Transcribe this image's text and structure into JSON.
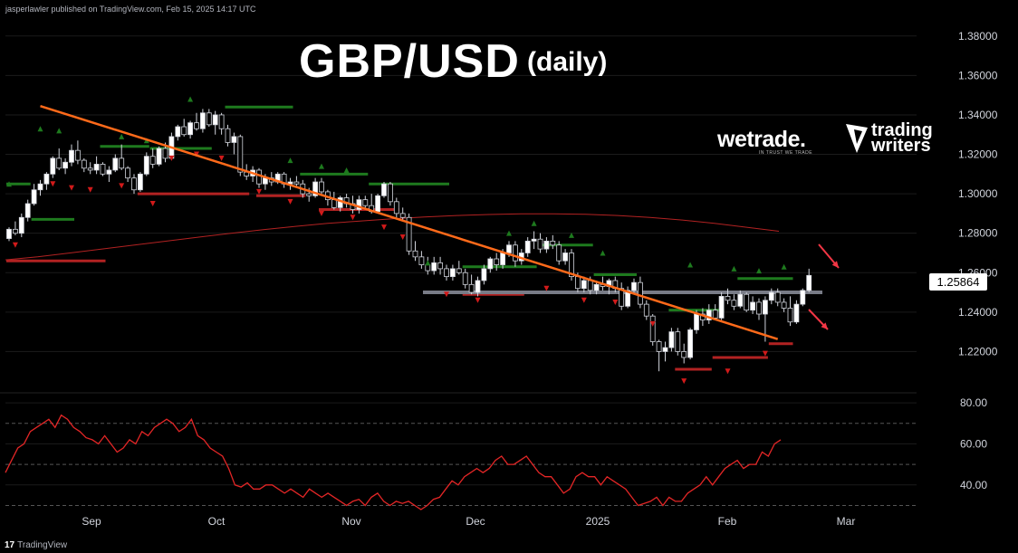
{
  "header": {
    "published": "jasperlawler published on TradingView.com, Feb 15, 2025 14:17 UTC"
  },
  "title": "GBP/USD",
  "subtitle": "(daily)",
  "logos": {
    "wetrade": "wetrade.",
    "wetrade_tagline": "IN TRUST WE TRADE",
    "writers_line1": "trading",
    "writers_line2": "writers"
  },
  "footer": {
    "brand": "TradingView"
  },
  "colors": {
    "bull": "#ffffff",
    "bear": "#000000",
    "trendline": "#ff6a1a",
    "ma": "#b22222",
    "rsi": "#e32626",
    "support": "#787b86",
    "arrow": "#f23645",
    "up_marker": "#1e7a1e",
    "down_marker": "#d11a1a"
  },
  "chart_data": [
    {
      "type": "candlestick",
      "title": "GBP/USD (daily)",
      "ylim": [
        1.2,
        1.39
      ],
      "y_ticks": [
        "1.38000",
        "1.36000",
        "1.34000",
        "1.32000",
        "1.30000",
        "1.28000",
        "1.26000",
        "1.24000",
        "1.22000"
      ],
      "x_ticks": [
        "Sep",
        "Oct",
        "Nov",
        "Dec",
        "2025",
        "Feb",
        "Mar"
      ],
      "last_price_label": "1.25864",
      "candles": [
        [
          1.2773,
          1.283,
          1.276,
          1.282
        ],
        [
          1.282,
          1.286,
          1.279,
          1.28
        ],
        [
          1.28,
          1.29,
          1.278,
          1.288
        ],
        [
          1.288,
          1.297,
          1.286,
          1.295
        ],
        [
          1.295,
          1.305,
          1.294,
          1.302
        ],
        [
          1.302,
          1.307,
          1.299,
          1.305
        ],
        [
          1.305,
          1.311,
          1.302,
          1.31
        ],
        [
          1.31,
          1.319,
          1.308,
          1.318
        ],
        [
          1.318,
          1.323,
          1.312,
          1.313
        ],
        [
          1.313,
          1.318,
          1.31,
          1.316
        ],
        [
          1.316,
          1.325,
          1.314,
          1.322
        ],
        [
          1.322,
          1.327,
          1.315,
          1.317
        ],
        [
          1.317,
          1.318,
          1.311,
          1.313
        ],
        [
          1.313,
          1.316,
          1.31,
          1.312
        ],
        [
          1.312,
          1.319,
          1.31,
          1.315
        ],
        [
          1.315,
          1.316,
          1.309,
          1.31
        ],
        [
          1.31,
          1.314,
          1.306,
          1.312
        ],
        [
          1.312,
          1.32,
          1.311,
          1.318
        ],
        [
          1.318,
          1.325,
          1.312,
          1.313
        ],
        [
          1.313,
          1.314,
          1.306,
          1.308
        ],
        [
          1.308,
          1.31,
          1.3,
          1.302
        ],
        [
          1.302,
          1.311,
          1.301,
          1.31
        ],
        [
          1.31,
          1.321,
          1.309,
          1.319
        ],
        [
          1.319,
          1.323,
          1.313,
          1.315
        ],
        [
          1.315,
          1.324,
          1.314,
          1.323
        ],
        [
          1.323,
          1.326,
          1.316,
          1.318
        ],
        [
          1.318,
          1.331,
          1.317,
          1.329
        ],
        [
          1.329,
          1.335,
          1.327,
          1.334
        ],
        [
          1.334,
          1.338,
          1.329,
          1.33
        ],
        [
          1.33,
          1.337,
          1.328,
          1.336
        ],
        [
          1.336,
          1.341,
          1.332,
          1.333
        ],
        [
          1.333,
          1.343,
          1.331,
          1.341
        ],
        [
          1.341,
          1.343,
          1.334,
          1.335
        ],
        [
          1.335,
          1.342,
          1.33,
          1.34
        ],
        [
          1.34,
          1.341,
          1.33,
          1.333
        ],
        [
          1.333,
          1.335,
          1.324,
          1.326
        ],
        [
          1.326,
          1.331,
          1.32,
          1.329
        ],
        [
          1.329,
          1.33,
          1.309,
          1.311
        ],
        [
          1.311,
          1.315,
          1.307,
          1.309
        ],
        [
          1.309,
          1.314,
          1.306,
          1.312
        ],
        [
          1.312,
          1.313,
          1.303,
          1.305
        ],
        [
          1.305,
          1.31,
          1.302,
          1.308
        ],
        [
          1.308,
          1.311,
          1.304,
          1.306
        ],
        [
          1.306,
          1.311,
          1.305,
          1.31
        ],
        [
          1.31,
          1.311,
          1.303,
          1.305
        ],
        [
          1.305,
          1.308,
          1.302,
          1.306
        ],
        [
          1.306,
          1.309,
          1.304,
          1.305
        ],
        [
          1.305,
          1.307,
          1.298,
          1.3
        ],
        [
          1.3,
          1.303,
          1.296,
          1.299
        ],
        [
          1.299,
          1.308,
          1.298,
          1.306
        ],
        [
          1.306,
          1.308,
          1.3,
          1.301
        ],
        [
          1.301,
          1.302,
          1.294,
          1.297
        ],
        [
          1.297,
          1.301,
          1.292,
          1.293
        ],
        [
          1.293,
          1.299,
          1.291,
          1.298
        ],
        [
          1.298,
          1.3,
          1.293,
          1.295
        ],
        [
          1.295,
          1.299,
          1.29,
          1.292
        ],
        [
          1.292,
          1.299,
          1.29,
          1.297
        ],
        [
          1.297,
          1.299,
          1.292,
          1.294
        ],
        [
          1.294,
          1.3,
          1.29,
          1.291
        ],
        [
          1.291,
          1.3,
          1.29,
          1.299
        ],
        [
          1.299,
          1.306,
          1.298,
          1.305
        ],
        [
          1.305,
          1.306,
          1.294,
          1.296
        ],
        [
          1.296,
          1.298,
          1.288,
          1.29
        ],
        [
          1.29,
          1.293,
          1.286,
          1.288
        ],
        [
          1.288,
          1.29,
          1.269,
          1.271
        ],
        [
          1.271,
          1.276,
          1.266,
          1.268
        ],
        [
          1.268,
          1.271,
          1.262,
          1.264
        ],
        [
          1.264,
          1.268,
          1.259,
          1.261
        ],
        [
          1.261,
          1.268,
          1.259,
          1.265
        ],
        [
          1.265,
          1.268,
          1.259,
          1.262
        ],
        [
          1.262,
          1.264,
          1.256,
          1.258
        ],
        [
          1.258,
          1.264,
          1.256,
          1.262
        ],
        [
          1.262,
          1.266,
          1.259,
          1.26
        ],
        [
          1.26,
          1.262,
          1.252,
          1.254
        ],
        [
          1.254,
          1.259,
          1.249,
          1.25
        ],
        [
          1.25,
          1.258,
          1.248,
          1.256
        ],
        [
          1.256,
          1.264,
          1.254,
          1.262
        ],
        [
          1.262,
          1.268,
          1.26,
          1.267
        ],
        [
          1.267,
          1.27,
          1.261,
          1.264
        ],
        [
          1.264,
          1.272,
          1.262,
          1.27
        ],
        [
          1.27,
          1.276,
          1.268,
          1.274
        ],
        [
          1.274,
          1.276,
          1.263,
          1.266
        ],
        [
          1.266,
          1.272,
          1.264,
          1.27
        ],
        [
          1.27,
          1.278,
          1.268,
          1.276
        ],
        [
          1.276,
          1.281,
          1.272,
          1.277
        ],
        [
          1.277,
          1.28,
          1.27,
          1.272
        ],
        [
          1.272,
          1.278,
          1.27,
          1.276
        ],
        [
          1.276,
          1.279,
          1.272,
          1.274
        ],
        [
          1.274,
          1.276,
          1.264,
          1.266
        ],
        [
          1.266,
          1.272,
          1.264,
          1.27
        ],
        [
          1.27,
          1.272,
          1.256,
          1.258
        ],
        [
          1.258,
          1.26,
          1.25,
          1.252
        ],
        [
          1.252,
          1.258,
          1.25,
          1.256
        ],
        [
          1.256,
          1.258,
          1.249,
          1.251
        ],
        [
          1.251,
          1.256,
          1.249,
          1.254
        ],
        [
          1.254,
          1.258,
          1.251,
          1.253
        ],
        [
          1.253,
          1.257,
          1.249,
          1.256
        ],
        [
          1.256,
          1.258,
          1.25,
          1.252
        ],
        [
          1.252,
          1.255,
          1.241,
          1.243
        ],
        [
          1.243,
          1.253,
          1.242,
          1.251
        ],
        [
          1.251,
          1.257,
          1.249,
          1.255
        ],
        [
          1.255,
          1.258,
          1.242,
          1.244
        ],
        [
          1.244,
          1.246,
          1.236,
          1.238
        ],
        [
          1.238,
          1.239,
          1.223,
          1.225
        ],
        [
          1.225,
          1.226,
          1.21,
          1.22
        ],
        [
          1.22,
          1.225,
          1.215,
          1.222
        ],
        [
          1.222,
          1.232,
          1.22,
          1.23
        ],
        [
          1.23,
          1.232,
          1.218,
          1.22
        ],
        [
          1.22,
          1.224,
          1.214,
          1.217
        ],
        [
          1.217,
          1.232,
          1.216,
          1.231
        ],
        [
          1.231,
          1.241,
          1.229,
          1.239
        ],
        [
          1.239,
          1.242,
          1.233,
          1.236
        ],
        [
          1.236,
          1.244,
          1.234,
          1.241
        ],
        [
          1.241,
          1.244,
          1.236,
          1.237
        ],
        [
          1.237,
          1.25,
          1.236,
          1.248
        ],
        [
          1.248,
          1.252,
          1.244,
          1.246
        ],
        [
          1.246,
          1.249,
          1.241,
          1.243
        ],
        [
          1.243,
          1.251,
          1.242,
          1.249
        ],
        [
          1.249,
          1.25,
          1.24,
          1.241
        ],
        [
          1.241,
          1.248,
          1.239,
          1.245
        ],
        [
          1.245,
          1.247,
          1.236,
          1.239
        ],
        [
          1.239,
          1.248,
          1.225,
          1.246
        ],
        [
          1.246,
          1.252,
          1.244,
          1.25
        ],
        [
          1.25,
          1.252,
          1.243,
          1.245
        ],
        [
          1.245,
          1.247,
          1.24,
          1.242
        ],
        [
          1.242,
          1.248,
          1.233,
          1.235
        ],
        [
          1.235,
          1.246,
          1.234,
          1.244
        ],
        [
          1.244,
          1.252,
          1.243,
          1.251
        ],
        [
          1.251,
          1.262,
          1.25,
          1.2586
        ]
      ],
      "moving_average": {
        "color": "#b22222",
        "values": [
          1.2665,
          1.268,
          1.27,
          1.272,
          1.274,
          1.276,
          1.278,
          1.28,
          1.2818,
          1.2835,
          1.285,
          1.2862,
          1.2873,
          1.2882,
          1.289,
          1.2895,
          1.2898,
          1.2898,
          1.2896,
          1.289,
          1.288,
          1.2867,
          1.285,
          1.283,
          1.281
        ]
      },
      "support_level": 1.25,
      "trendline": {
        "from": [
          5,
          1.3445
        ],
        "to": [
          123,
          1.2263
        ]
      },
      "up_markers": [
        [
          0,
          1.305
        ],
        [
          5,
          1.333
        ],
        [
          8,
          1.332
        ],
        [
          18,
          1.329
        ],
        [
          22,
          1.327
        ],
        [
          29,
          1.348
        ],
        [
          45,
          1.317
        ],
        [
          50,
          1.314
        ],
        [
          54,
          1.312
        ],
        [
          67,
          1.265
        ],
        [
          80,
          1.28
        ],
        [
          84,
          1.285
        ],
        [
          90,
          1.279
        ],
        [
          95,
          1.27
        ],
        [
          109,
          1.264
        ],
        [
          116,
          1.262
        ],
        [
          120,
          1.261
        ],
        [
          124,
          1.263
        ]
      ],
      "down_markers": [
        [
          1,
          1.274
        ],
        [
          7,
          1.305
        ],
        [
          10,
          1.303
        ],
        [
          13,
          1.302
        ],
        [
          18,
          1.304
        ],
        [
          23,
          1.295
        ],
        [
          26,
          1.318
        ],
        [
          30,
          1.32
        ],
        [
          34,
          1.318
        ],
        [
          40,
          1.301
        ],
        [
          45,
          1.296
        ],
        [
          50,
          1.29
        ],
        [
          55,
          1.288
        ],
        [
          60,
          1.283
        ],
        [
          63,
          1.278
        ],
        [
          70,
          1.249
        ],
        [
          75,
          1.246
        ],
        [
          86,
          1.252
        ],
        [
          92,
          1.246
        ],
        [
          97,
          1.245
        ],
        [
          103,
          1.234
        ],
        [
          108,
          1.205
        ],
        [
          115,
          1.21
        ],
        [
          121,
          1.219
        ]
      ],
      "resistance_dashes": [
        {
          "from": 0,
          "to": 3,
          "level": 1.305,
          "color": "#1e7a1e"
        },
        {
          "from": 4,
          "to": 10,
          "level": 1.287,
          "color": "#1e7a1e"
        },
        {
          "from": 15,
          "to": 22,
          "level": 1.324,
          "color": "#1e7a1e"
        },
        {
          "from": 23,
          "to": 32,
          "level": 1.323,
          "color": "#1e7a1e"
        },
        {
          "from": 35,
          "to": 45,
          "level": 1.344,
          "color": "#1e7a1e"
        },
        {
          "from": 47,
          "to": 57,
          "level": 1.31,
          "color": "#1e7a1e"
        },
        {
          "from": 58,
          "to": 70,
          "level": 1.305,
          "color": "#1e7a1e"
        },
        {
          "from": 73,
          "to": 84,
          "level": 1.263,
          "color": "#1e7a1e"
        },
        {
          "from": 85,
          "to": 93,
          "level": 1.274,
          "color": "#1e7a1e"
        },
        {
          "from": 94,
          "to": 100,
          "level": 1.259,
          "color": "#1e7a1e"
        },
        {
          "from": 106,
          "to": 114,
          "level": 1.241,
          "color": "#1e7a1e"
        },
        {
          "from": 117,
          "to": 125,
          "level": 1.257,
          "color": "#1e7a1e"
        },
        {
          "from": 0,
          "to": 15,
          "level": 1.266,
          "color": "#b22222"
        },
        {
          "from": 21,
          "to": 38,
          "level": 1.3,
          "color": "#b22222"
        },
        {
          "from": 40,
          "to": 47,
          "level": 1.299,
          "color": "#b22222"
        },
        {
          "from": 50,
          "to": 62,
          "level": 1.292,
          "color": "#b22222"
        },
        {
          "from": 73,
          "to": 82,
          "level": 1.249,
          "color": "#b22222"
        },
        {
          "from": 86,
          "to": 100,
          "level": 1.25,
          "color": "#b22222"
        },
        {
          "from": 107,
          "to": 112,
          "level": 1.211,
          "color": "#b22222"
        },
        {
          "from": 113,
          "to": 121,
          "level": 1.217,
          "color": "#b22222"
        },
        {
          "from": 122,
          "to": 125,
          "level": 1.224,
          "color": "#b22222"
        }
      ]
    },
    {
      "type": "line",
      "title": "RSI",
      "ylim": [
        28,
        84
      ],
      "y_ticks": [
        "80.00",
        "60.00",
        "40.00"
      ],
      "levels": [
        70,
        30,
        50
      ],
      "values": [
        46,
        52,
        58,
        60,
        66,
        68,
        70,
        72,
        68,
        74,
        72,
        68,
        66,
        63,
        62,
        60,
        64,
        60,
        56,
        58,
        62,
        60,
        66,
        64,
        68,
        70,
        72,
        70,
        66,
        68,
        72,
        64,
        62,
        58,
        56,
        54,
        48,
        40,
        39,
        41,
        38,
        38,
        40,
        40,
        38,
        36,
        38,
        36,
        34,
        38,
        36,
        34,
        36,
        34,
        32,
        30,
        32,
        33,
        30,
        34,
        36,
        32,
        30,
        32,
        31,
        32,
        30,
        28,
        30,
        33,
        34,
        38,
        42,
        40,
        44,
        46,
        48,
        46,
        48,
        52,
        54,
        50,
        50,
        52,
        54,
        50,
        46,
        44,
        44,
        40,
        36,
        38,
        44,
        46,
        44,
        44,
        40,
        44,
        42,
        40,
        38,
        34,
        30,
        31,
        32,
        34,
        30,
        34,
        32,
        32,
        36,
        38,
        40,
        44,
        40,
        44,
        48,
        50,
        52,
        48,
        50,
        50,
        56,
        54,
        60,
        62
      ]
    }
  ]
}
